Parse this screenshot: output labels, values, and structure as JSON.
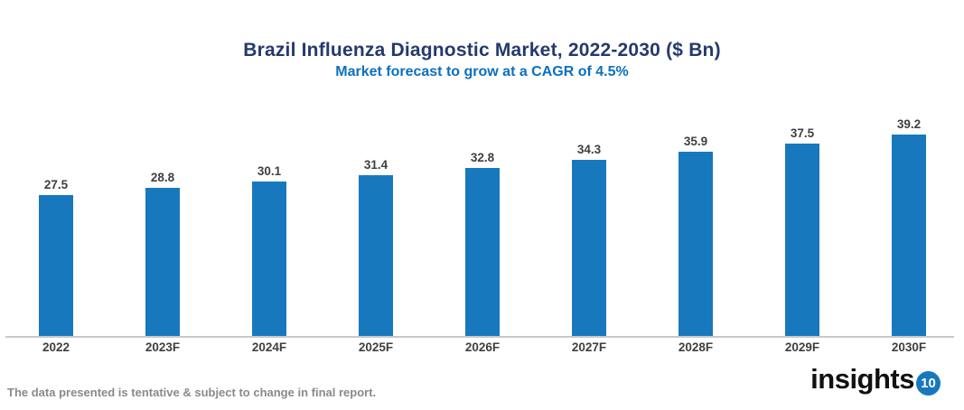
{
  "header": {
    "title": "Brazil Influenza Diagnostic Market, 2022-2030 ($ Bn)",
    "subtitle": "Market forecast to grow at a CAGR of 4.5%"
  },
  "chart_data": {
    "type": "bar",
    "categories": [
      "2022",
      "2023F",
      "2024F",
      "2025F",
      "2026F",
      "2027F",
      "2028F",
      "2029F",
      "2030F"
    ],
    "values": [
      27.5,
      28.8,
      30.1,
      31.4,
      32.8,
      34.3,
      35.9,
      37.5,
      39.2
    ],
    "title": "Brazil Influenza Diagnostic Market, 2022-2030 ($ Bn)",
    "subtitle": "Market forecast to grow at a CAGR of 4.5%",
    "xlabel": "",
    "ylabel": "",
    "ylim": [
      0,
      39.2
    ],
    "grid": false,
    "legend": false,
    "value_labels": true,
    "bar_color": "#1878BE"
  },
  "footer": {
    "disclaimer": "The data presented is tentative & subject to change in final report.",
    "logo_text": "insights",
    "logo_badge": "10"
  },
  "colors": {
    "title": "#243A6D",
    "subtitle": "#0B70C0",
    "bar": "#1878BE",
    "label": "#3F3F3F",
    "axis_line": "#C8C8C8",
    "disclaimer": "#8A8A8A",
    "logo_badge_bg": "#1878BE"
  }
}
